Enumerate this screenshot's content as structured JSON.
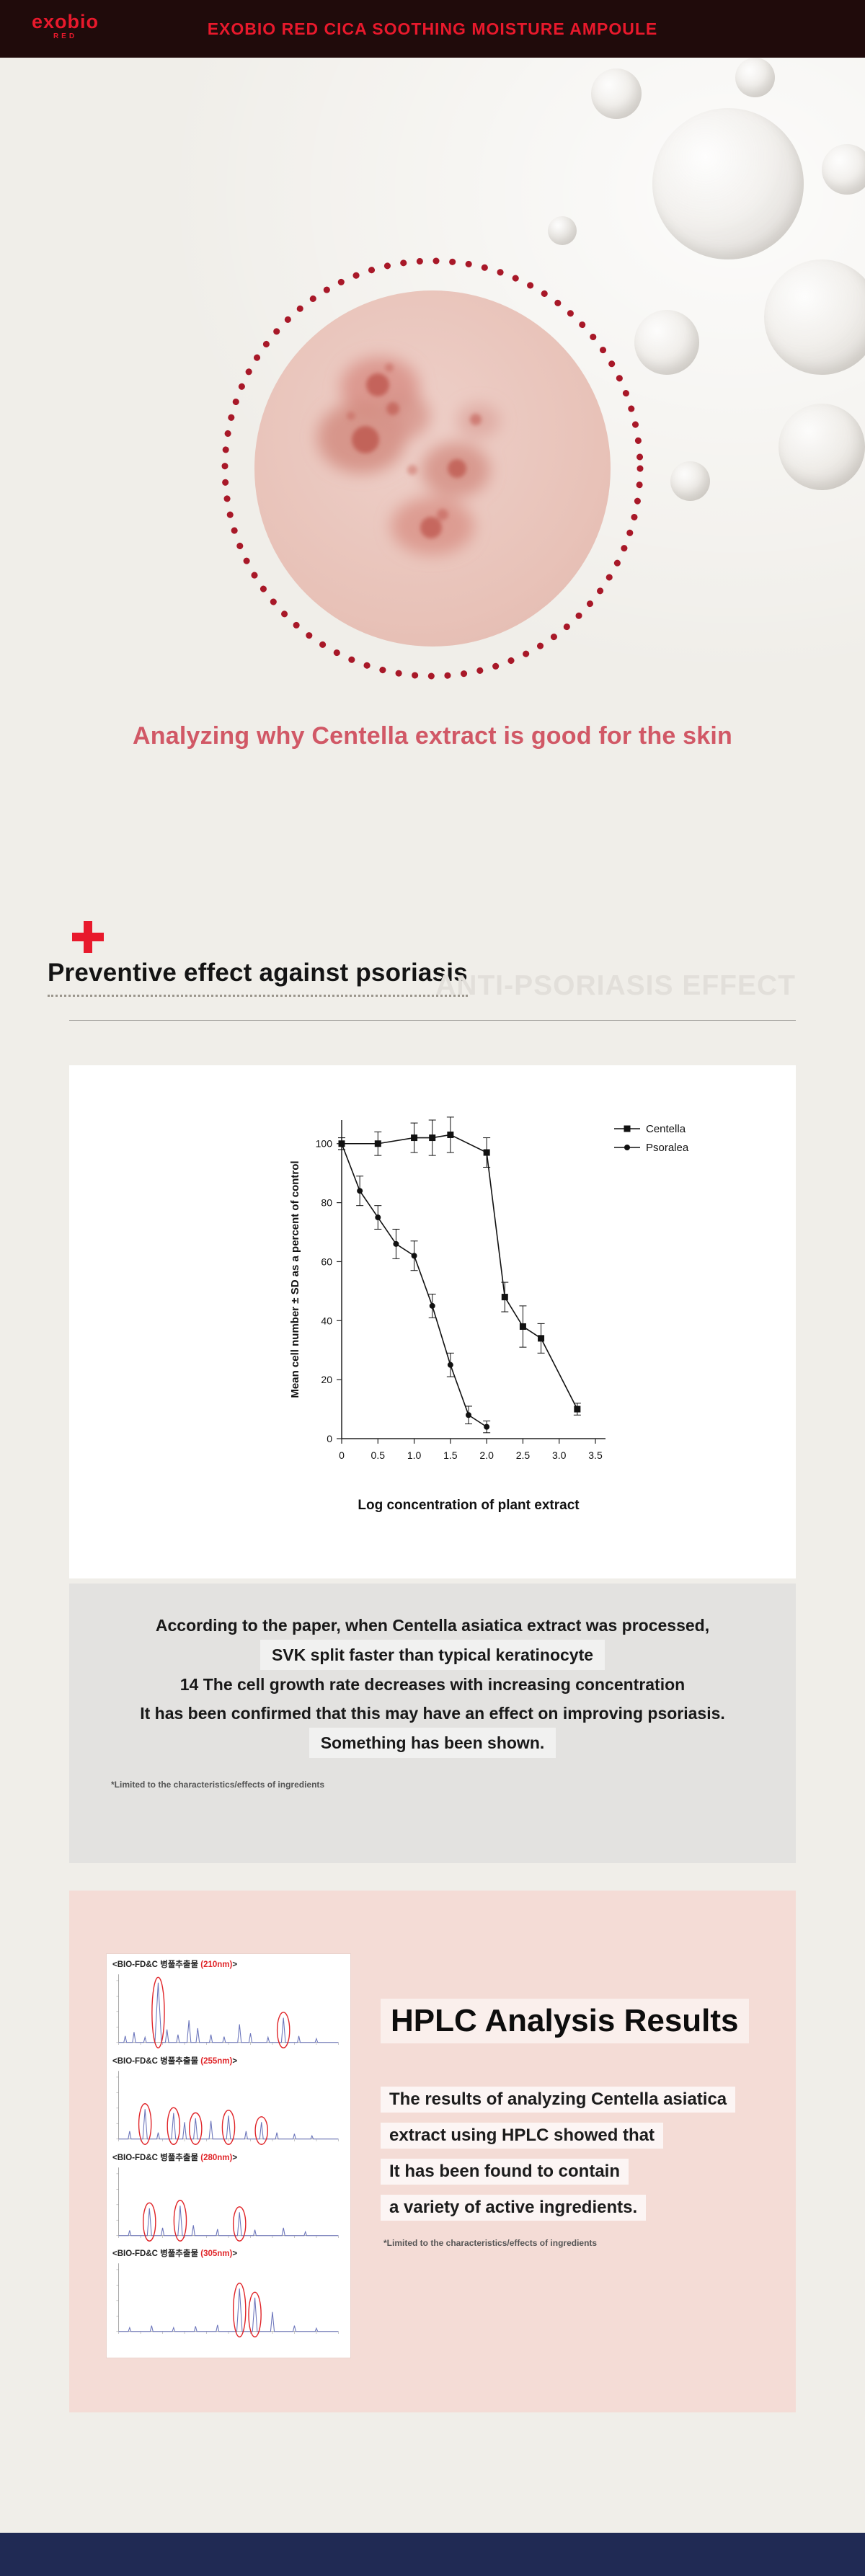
{
  "colors": {
    "accent_red": "#e8192c",
    "rose_title": "#d15866",
    "dot_ring": "#a81828",
    "pink_section": "#f4dcd6",
    "gray_box": "#e3e2e0",
    "footer_navy": "#202a54",
    "hplc_red": "#e02428",
    "chromo_blue": "#6b75bb"
  },
  "header": {
    "logo": "exobio",
    "logo_sub": "RED",
    "title": "EXOBIO RED CICA SOOTHING MOISTURE AMPOULE"
  },
  "hero": {
    "caption": "Analyzing why Centella extract is good for the skin"
  },
  "psoriasis_section": {
    "heading": "Preventive effect against psoriasis",
    "watermark": "ANTI-PSORIASIS EFFECT"
  },
  "chart_data": {
    "type": "line",
    "title": "",
    "xlabel": "Log concentration of plant extract",
    "ylabel": "Mean cell number ± SD as a percent of control",
    "xlim": [
      0,
      3.5
    ],
    "ylim": [
      0,
      108
    ],
    "xticks": [
      0,
      0.5,
      1,
      1.5,
      2,
      2.5,
      3,
      3.5
    ],
    "xtick_labels": [
      "0",
      "0.5",
      "1.0",
      "1.5",
      "2.0",
      "2.5",
      "3.0",
      "3.5"
    ],
    "yticks": [
      0,
      20,
      40,
      60,
      80,
      100
    ],
    "grid": false,
    "legend_position": "top-right",
    "series": [
      {
        "name": "Centella",
        "marker": "square",
        "x": [
          0,
          0.5,
          1.0,
          1.25,
          1.5,
          2.0,
          2.25,
          2.5,
          2.75,
          3.25
        ],
        "y": [
          100,
          100,
          102,
          102,
          103,
          97,
          48,
          38,
          34,
          10
        ],
        "err": [
          2,
          4,
          5,
          6,
          6,
          5,
          5,
          7,
          5,
          2
        ]
      },
      {
        "name": "Psoralea",
        "marker": "circle",
        "x": [
          0,
          0.25,
          0.5,
          0.75,
          1.0,
          1.25,
          1.5,
          1.75,
          2.0
        ],
        "y": [
          100,
          84,
          75,
          66,
          62,
          45,
          25,
          8,
          4
        ],
        "err": [
          2,
          5,
          4,
          5,
          5,
          4,
          4,
          3,
          2
        ]
      }
    ]
  },
  "paper_box": {
    "lines": [
      "According to the paper, when Centella asiatica extract was processed,",
      "SVK split faster than typical keratinocyte",
      "14 The cell growth rate decreases with increasing concentration",
      "It has been confirmed that this may have an effect on improving psoriasis.",
      "Something has been shown."
    ],
    "note": "*Limited to the characteristics/effects of ingredients"
  },
  "hplc": {
    "heading": "HPLC Analysis Results",
    "lines": [
      "The results of analyzing Centella asiatica",
      "extract using HPLC showed that",
      "It has been found to contain",
      "a variety of active ingredients."
    ],
    "note": "*Limited to the characteristics/effects of ingredients",
    "panels": [
      {
        "label": "<BIO-FD&C 병풀추출물 ",
        "wavelength": "(210nm)",
        "close": ">",
        "peaks": [
          [
            3,
            10
          ],
          [
            7,
            16
          ],
          [
            12,
            8
          ],
          [
            18,
            92
          ],
          [
            22,
            20
          ],
          [
            27,
            12
          ],
          [
            32,
            34
          ],
          [
            36,
            22
          ],
          [
            42,
            12
          ],
          [
            48,
            9
          ],
          [
            55,
            28
          ],
          [
            60,
            14
          ],
          [
            68,
            8
          ],
          [
            75,
            38
          ],
          [
            82,
            10
          ],
          [
            90,
            6
          ]
        ],
        "circles": [
          [
            18,
            92
          ],
          [
            75,
            38
          ]
        ]
      },
      {
        "label": "<BIO-FD&C 병풀추출물 ",
        "wavelength": "(255nm)",
        "close": ">",
        "peaks": [
          [
            5,
            12
          ],
          [
            12,
            46
          ],
          [
            18,
            10
          ],
          [
            25,
            40
          ],
          [
            30,
            26
          ],
          [
            35,
            32
          ],
          [
            42,
            28
          ],
          [
            50,
            36
          ],
          [
            58,
            12
          ],
          [
            65,
            26
          ],
          [
            72,
            10
          ],
          [
            80,
            8
          ],
          [
            88,
            5
          ]
        ],
        "circles": [
          [
            12,
            46
          ],
          [
            25,
            40
          ],
          [
            35,
            32
          ],
          [
            50,
            36
          ],
          [
            65,
            26
          ]
        ]
      },
      {
        "label": "<BIO-FD&C 병풀추출물 ",
        "wavelength": "(280nm)",
        "close": ">",
        "peaks": [
          [
            5,
            8
          ],
          [
            14,
            42
          ],
          [
            20,
            12
          ],
          [
            28,
            46
          ],
          [
            34,
            16
          ],
          [
            45,
            10
          ],
          [
            55,
            36
          ],
          [
            62,
            9
          ],
          [
            75,
            12
          ],
          [
            85,
            6
          ]
        ],
        "circles": [
          [
            14,
            42
          ],
          [
            28,
            46
          ],
          [
            55,
            36
          ]
        ]
      },
      {
        "label": "<BIO-FD&C 병풀추출물 ",
        "wavelength": "(305nm)",
        "close": ">",
        "peaks": [
          [
            5,
            6
          ],
          [
            15,
            9
          ],
          [
            25,
            6
          ],
          [
            35,
            8
          ],
          [
            45,
            10
          ],
          [
            55,
            66
          ],
          [
            62,
            52
          ],
          [
            70,
            30
          ],
          [
            80,
            9
          ],
          [
            90,
            5
          ]
        ],
        "circles": [
          [
            55,
            66
          ],
          [
            62,
            52
          ]
        ]
      }
    ]
  }
}
